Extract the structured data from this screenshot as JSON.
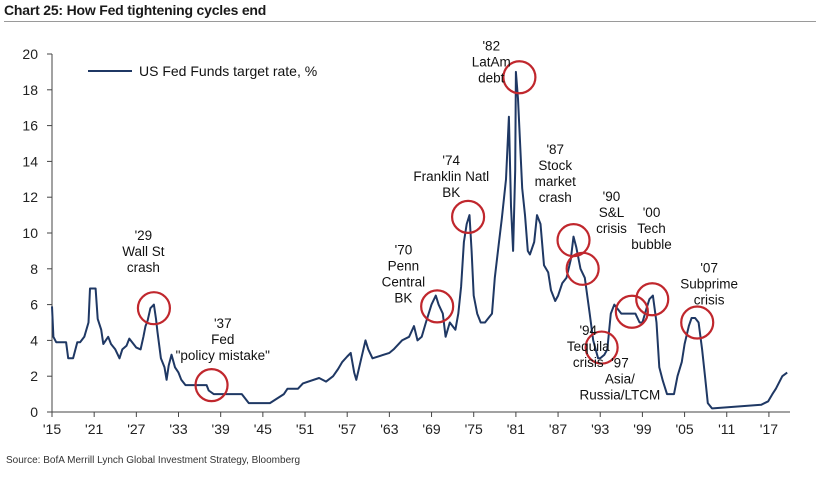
{
  "title": "Chart 25: How Fed tightening cycles end",
  "source": "Source: BofA Merrill Lynch Global Investment Strategy, Bloomberg",
  "colors": {
    "line": "#1f3864",
    "circle": "#c0272d",
    "axis": "#444444"
  },
  "chart_data": {
    "type": "line",
    "title": "Chart 25: How Fed tightening cycles end",
    "xlabel": "",
    "ylabel": "",
    "xlim": [
      1915,
      2020
    ],
    "ylim": [
      0,
      20
    ],
    "grid": false,
    "legend_position": "top-left",
    "y_ticks": [
      0,
      2,
      4,
      6,
      8,
      10,
      12,
      14,
      16,
      18,
      20
    ],
    "x_ticks": [
      {
        "value": 1915,
        "label": "'15"
      },
      {
        "value": 1921,
        "label": "'21"
      },
      {
        "value": 1927,
        "label": "'27"
      },
      {
        "value": 1933,
        "label": "'33"
      },
      {
        "value": 1939,
        "label": "'39"
      },
      {
        "value": 1945,
        "label": "'45"
      },
      {
        "value": 1951,
        "label": "'51"
      },
      {
        "value": 1957,
        "label": "'57"
      },
      {
        "value": 1963,
        "label": "'63"
      },
      {
        "value": 1969,
        "label": "'69"
      },
      {
        "value": 1975,
        "label": "'75"
      },
      {
        "value": 1981,
        "label": "'81"
      },
      {
        "value": 1987,
        "label": "'87"
      },
      {
        "value": 1993,
        "label": "'93"
      },
      {
        "value": 1999,
        "label": "'99"
      },
      {
        "value": 2005,
        "label": "'05"
      },
      {
        "value": 2011,
        "label": "'11"
      },
      {
        "value": 2017,
        "label": "'17"
      }
    ],
    "series": [
      {
        "name": "US Fed Funds target rate, %",
        "x": [
          1915,
          1915.2,
          1915.6,
          1916,
          1917,
          1917.3,
          1918,
          1918.6,
          1919,
          1919.6,
          1920.2,
          1920.4,
          1921.2,
          1921.5,
          1922,
          1922.3,
          1923,
          1923.4,
          1924,
          1924.6,
          1925,
          1925.6,
          1926,
          1926.6,
          1927,
          1927.6,
          1928,
          1928.3,
          1928.6,
          1929,
          1929.5,
          1929.8,
          1930,
          1930.5,
          1931,
          1931.3,
          1931.6,
          1932,
          1932.5,
          1933,
          1933.4,
          1934,
          1935,
          1936,
          1937,
          1937.3,
          1938,
          1939,
          1942,
          1943,
          1946,
          1948,
          1948.5,
          1950,
          1950.7,
          1953,
          1954,
          1955,
          1955.7,
          1956.3,
          1957,
          1957.5,
          1958,
          1958.3,
          1959,
          1959.6,
          1960,
          1960.6,
          1963,
          1963.6,
          1964.8,
          1965.8,
          1966.5,
          1967,
          1967.6,
          1968.2,
          1969,
          1969.6,
          1970,
          1970.6,
          1971,
          1971.6,
          1972.4,
          1972.8,
          1973.2,
          1973.6,
          1974,
          1974.4,
          1974.7,
          1975,
          1975.5,
          1976,
          1976.6,
          1977,
          1977.6,
          1978,
          1978.6,
          1979,
          1979.6,
          1980,
          1980.3,
          1980.6,
          1980.9,
          1981,
          1981.3,
          1981.6,
          1981.9,
          1982.3,
          1982.7,
          1983,
          1983.6,
          1984,
          1984.5,
          1985,
          1985.6,
          1986,
          1986.6,
          1987,
          1987.6,
          1988.2,
          1988.8,
          1989.2,
          1989.6,
          1990.2,
          1990.8,
          1991.5,
          1992,
          1992.7,
          1993,
          1993.6,
          1994,
          1994.5,
          1995,
          1996,
          1997,
          1998,
          1998.6,
          1999,
          1999.6,
          2000,
          2000.5,
          2001,
          2001.4,
          2001.9,
          2002.5,
          2003.5,
          2004,
          2004.6,
          2005,
          2005.6,
          2006,
          2006.5,
          2007,
          2007.5,
          2007.9,
          2008.3,
          2008.9,
          2009,
          2015.9,
          2016.9,
          2017.5,
          2018,
          2018.9,
          2019.6
        ],
        "values": [
          5.9,
          4.2,
          3.9,
          3.9,
          3.9,
          3.0,
          3.0,
          3.9,
          3.9,
          4.2,
          5.0,
          6.9,
          6.9,
          5.2,
          4.6,
          3.8,
          4.2,
          3.8,
          3.5,
          3.0,
          3.5,
          3.7,
          4.1,
          3.8,
          3.6,
          3.5,
          4.2,
          4.8,
          5.1,
          5.8,
          6.0,
          5.2,
          4.5,
          3.0,
          2.5,
          1.8,
          2.6,
          3.2,
          2.5,
          2.2,
          1.8,
          1.5,
          1.5,
          1.5,
          1.5,
          1.2,
          1.0,
          1.0,
          1.0,
          0.5,
          0.5,
          1.0,
          1.3,
          1.3,
          1.6,
          1.9,
          1.7,
          2.0,
          2.4,
          2.8,
          3.1,
          3.3,
          2.2,
          1.8,
          3.0,
          4.0,
          3.5,
          3.0,
          3.3,
          3.5,
          4.0,
          4.2,
          4.8,
          4.0,
          4.2,
          5.0,
          6.0,
          6.5,
          6.0,
          5.5,
          4.2,
          5.0,
          4.6,
          5.5,
          7.0,
          9.5,
          10.5,
          11.0,
          9.0,
          6.5,
          5.5,
          5.0,
          5.0,
          5.2,
          5.5,
          7.5,
          9.5,
          10.8,
          13.0,
          16.5,
          11.5,
          9.0,
          13.5,
          19.0,
          17.5,
          15.0,
          12.5,
          11.0,
          9.0,
          8.8,
          9.5,
          11.0,
          10.5,
          8.2,
          7.8,
          6.8,
          6.2,
          6.5,
          7.2,
          7.5,
          8.5,
          9.8,
          9.2,
          8.0,
          7.5,
          5.5,
          4.0,
          3.0,
          3.0,
          3.2,
          3.5,
          5.5,
          6.0,
          5.5,
          5.5,
          5.5,
          5.0,
          5.0,
          5.8,
          6.3,
          6.5,
          5.0,
          2.5,
          1.75,
          1.0,
          1.0,
          2.0,
          2.8,
          3.8,
          4.8,
          5.25,
          5.25,
          5.0,
          3.5,
          2.0,
          0.5,
          0.2,
          0.2,
          0.4,
          0.6,
          1.0,
          1.3,
          2.0,
          2.2
        ]
      }
    ],
    "annotations": [
      {
        "label": "'29 Wall St crash",
        "x": 1929.5,
        "y": 5.8
      },
      {
        "label": "'37 Fed \"policy mistake\"",
        "x": 1937.7,
        "y": 1.5
      },
      {
        "label": "'70 Penn Central BK",
        "x": 1969.8,
        "y": 5.9
      },
      {
        "label": "'74 Franklin Natl BK",
        "x": 1974.2,
        "y": 10.9
      },
      {
        "label": "'82 LatAm debt",
        "x": 1981.5,
        "y": 18.7
      },
      {
        "label": "'87 Stock market crash",
        "x": 1989.2,
        "y": 9.6
      },
      {
        "label": "'90 S&L crisis",
        "x": 1990.5,
        "y": 8.0
      },
      {
        "label": "'94 Tequila crisis",
        "x": 1993.2,
        "y": 3.6
      },
      {
        "label": "'97 Asia/ Russia/LTCM",
        "x": 1997.5,
        "y": 5.6
      },
      {
        "label": "'00 Tech bubble",
        "x": 2000.4,
        "y": 6.3
      },
      {
        "label": "'07 Subprime crisis",
        "x": 2006.8,
        "y": 5.0
      }
    ],
    "annotation_text": [
      {
        "lines": [
          "'29",
          "Wall St",
          "crash"
        ],
        "x": 1928.0,
        "y": 9.6
      },
      {
        "lines": [
          "'37",
          "Fed",
          "\"policy mistake\""
        ],
        "x": 1939.3,
        "y": 4.7
      },
      {
        "lines": [
          "'70",
          "Penn",
          "Central",
          "BK"
        ],
        "x": 1965.0,
        "y": 8.8
      },
      {
        "lines": [
          "'74",
          "Franklin Natl",
          "BK"
        ],
        "x": 1971.8,
        "y": 13.8
      },
      {
        "lines": [
          "'82",
          "LatAm",
          "debt"
        ],
        "x": 1977.5,
        "y": 20.2
      },
      {
        "lines": [
          "'87",
          "Stock",
          "market",
          "crash"
        ],
        "x": 1986.6,
        "y": 14.4
      },
      {
        "lines": [
          "'90",
          "S&L",
          "crisis"
        ],
        "x": 1994.6,
        "y": 11.8
      },
      {
        "lines": [
          "'94",
          "Tequila",
          "crisis"
        ],
        "x": 1991.3,
        "y": 4.3
      },
      {
        "lines": [
          "'97",
          "Asia/",
          "Russia/LTCM"
        ],
        "x": 1995.8,
        "y": 2.5
      },
      {
        "lines": [
          "'00",
          "Tech",
          "bubble"
        ],
        "x": 2000.3,
        "y": 10.9
      },
      {
        "lines": [
          "'07",
          "Subprime",
          "crisis"
        ],
        "x": 2008.5,
        "y": 7.8
      }
    ]
  }
}
